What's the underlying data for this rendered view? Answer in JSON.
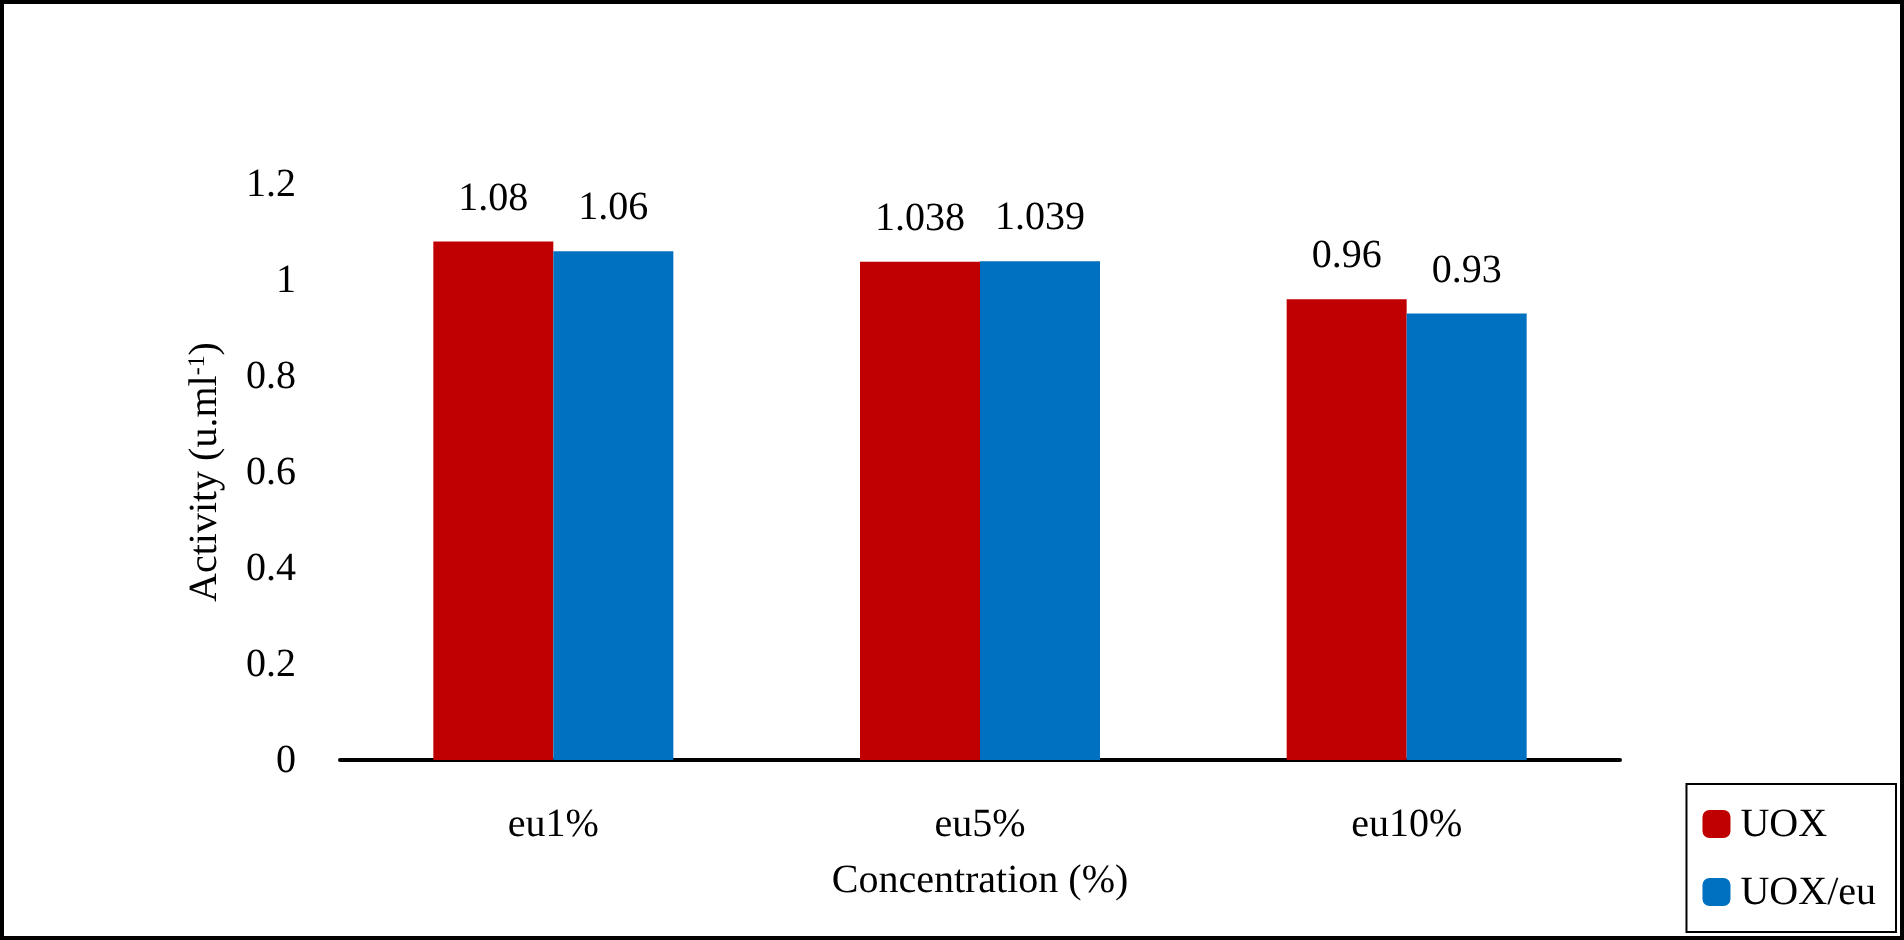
{
  "chart_data": {
    "type": "bar",
    "xlabel": "Concentration (%)",
    "ylabel": "Activity (u.ml$^{-1}$)",
    "categories": [
      "eu1%",
      "eu5%",
      "eu10%"
    ],
    "series": [
      {
        "name": "UOX",
        "color": "#c00000",
        "values": [
          1.08,
          1.038,
          0.96
        ]
      },
      {
        "name": "UOX/eu",
        "color": "#0070c0",
        "values": [
          1.06,
          1.039,
          0.93
        ]
      }
    ],
    "ylim": [
      0,
      1.2
    ],
    "yticks": [
      0,
      0.2,
      0.4,
      0.6,
      0.8,
      1,
      1.2
    ],
    "data_labels": true,
    "legend": "bottom right",
    "grid": false
  }
}
